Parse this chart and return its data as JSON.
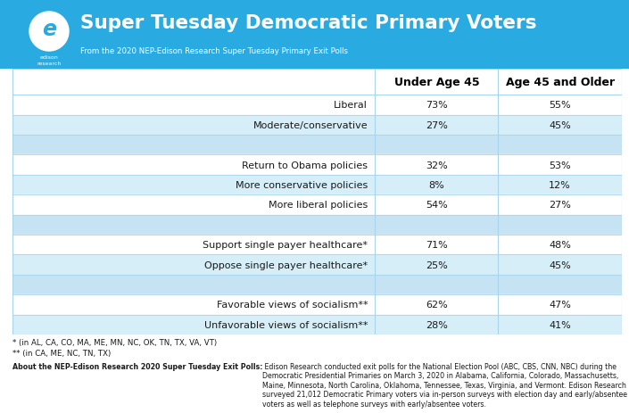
{
  "title": "Super Tuesday Democratic Primary Voters",
  "subtitle": "From the 2020 NEP-Edison Research Super Tuesday Primary Exit Polls",
  "header_bg": "#29ABE2",
  "header_col1": "Under Age 45",
  "header_col2": "Age 45 and Older",
  "rows": [
    {
      "label": "Liberal",
      "col1": "73%",
      "col2": "55%",
      "spacer": false,
      "alt": false
    },
    {
      "label": "Moderate/conservative",
      "col1": "27%",
      "col2": "45%",
      "spacer": false,
      "alt": true
    },
    {
      "label": "",
      "col1": "",
      "col2": "",
      "spacer": true,
      "alt": false
    },
    {
      "label": "Return to Obama policies",
      "col1": "32%",
      "col2": "53%",
      "spacer": false,
      "alt": false
    },
    {
      "label": "More conservative policies",
      "col1": "8%",
      "col2": "12%",
      "spacer": false,
      "alt": true
    },
    {
      "label": "More liberal policies",
      "col1": "54%",
      "col2": "27%",
      "spacer": false,
      "alt": false
    },
    {
      "label": "",
      "col1": "",
      "col2": "",
      "spacer": true,
      "alt": false
    },
    {
      "label": "Support single payer healthcare*",
      "col1": "71%",
      "col2": "48%",
      "spacer": false,
      "alt": false
    },
    {
      "label": "Oppose single payer healthcare*",
      "col1": "25%",
      "col2": "45%",
      "spacer": false,
      "alt": true
    },
    {
      "label": "",
      "col1": "",
      "col2": "",
      "spacer": true,
      "alt": false
    },
    {
      "label": "Favorable views of socialism**",
      "col1": "62%",
      "col2": "47%",
      "spacer": false,
      "alt": false
    },
    {
      "label": "Unfavorable views of socialism**",
      "col1": "28%",
      "col2": "41%",
      "spacer": false,
      "alt": true
    }
  ],
  "footnote1": "* (in AL, CA, CO, MA, ME, MN, NC, OK, TN, TX, VA, VT)",
  "footnote2": "** (in CA, ME, NC, TN, TX)",
  "about_bold": "About the NEP-Edison Research 2020 Super Tuesday Exit Polls:",
  "about_text": " Edison Research conducted exit polls for the National Election Pool (ABC, CBS, CNN, NBC) during the Democratic Presidential Primaries on March 3, 2020 in Alabama, California, Colorado, Massachusetts, Maine, Minnesota, North Carolina, Oklahoma, Tennessee, Texas, Virginia, and Vermont. Edison Research surveyed 21,012 Democratic Primary voters via in-person surveys with election day and early/absentee voters as well as telephone surveys with early/absentee voters.",
  "table_bg_white": "#FFFFFF",
  "table_bg_alt": "#D6EEF8",
  "table_bg_spacer": "#C5E3F3",
  "table_border": "#A8D4EC",
  "text_color": "#1a1a1a",
  "header_text_color": "#000000",
  "col_split": 0.595,
  "col2_split": 0.797
}
